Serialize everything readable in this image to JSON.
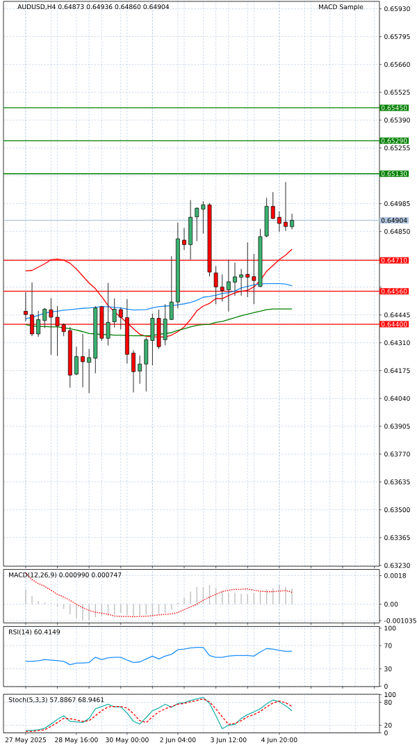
{
  "chart_data": [
    {
      "type": "candlestick",
      "title": "AUDUSD,H4 0.64873 0.64936 0.64860 0.64904",
      "annotations": [
        "MACD Sample"
      ],
      "categories": [
        null,
        null,
        null,
        null,
        null,
        null,
        null,
        null,
        null,
        null,
        null,
        null,
        null,
        null,
        null,
        null,
        null,
        null,
        null,
        null,
        null,
        null,
        null,
        null,
        null,
        null,
        null,
        null,
        null,
        null,
        null,
        null,
        null,
        null,
        null,
        null,
        null,
        null,
        null,
        null,
        null,
        null,
        null
      ],
      "ohlc": [
        [
          0.64463,
          0.64555,
          0.64415,
          0.64447
        ],
        [
          0.64446,
          0.64603,
          0.64342,
          0.64353
        ],
        [
          0.64353,
          0.64465,
          0.64339,
          0.64423
        ],
        [
          0.64418,
          0.64479,
          0.64381,
          0.64473
        ],
        [
          0.6447,
          0.64527,
          0.64252,
          0.64434
        ],
        [
          0.64434,
          0.64488,
          0.64246,
          0.64392
        ],
        [
          0.64398,
          0.64404,
          0.64342,
          0.64364
        ],
        [
          0.64369,
          0.64387,
          0.64092,
          0.64153
        ],
        [
          0.64158,
          0.64291,
          0.64153,
          0.64243
        ],
        [
          0.64243,
          0.64353,
          0.64094,
          0.64218
        ],
        [
          0.64215,
          0.6428,
          0.64066,
          0.64238
        ],
        [
          0.64235,
          0.64488,
          0.64162,
          0.64479
        ],
        [
          0.64485,
          0.64488,
          0.64319,
          0.64332
        ],
        [
          0.64332,
          0.646,
          0.64297,
          0.64409
        ],
        [
          0.64412,
          0.64525,
          0.64384,
          0.64473
        ],
        [
          0.64471,
          0.64482,
          0.64375,
          0.64434
        ],
        [
          0.64432,
          0.64522,
          0.64209,
          0.64254
        ],
        [
          0.6426,
          0.64274,
          0.64069,
          0.6417
        ],
        [
          0.64173,
          0.64248,
          0.64111,
          0.64207
        ],
        [
          0.64207,
          0.64336,
          0.64074,
          0.64325
        ],
        [
          0.64321,
          0.64452,
          0.64201,
          0.64429
        ],
        [
          0.64429,
          0.64471,
          0.6428,
          0.64291
        ],
        [
          0.64325,
          0.64497,
          0.64297,
          0.64425
        ],
        [
          0.64423,
          0.6473,
          0.6442,
          0.64508
        ],
        [
          0.64508,
          0.64893,
          0.64477,
          0.64814
        ],
        [
          0.64808,
          0.64867,
          0.6476,
          0.64786
        ],
        [
          0.64786,
          0.65002,
          0.64713,
          0.64919
        ],
        [
          0.64921,
          0.64966,
          0.64803,
          0.64963
        ],
        [
          0.64958,
          0.64996,
          0.64839,
          0.64979
        ],
        [
          0.64979,
          0.64988,
          0.64632,
          0.64653
        ],
        [
          0.64649,
          0.64682,
          0.64497,
          0.64581
        ],
        [
          0.6458,
          0.64642,
          0.6451,
          0.64564
        ],
        [
          0.64567,
          0.64713,
          0.64462,
          0.64606
        ],
        [
          0.64604,
          0.64699,
          0.64538,
          0.6463
        ],
        [
          0.64628,
          0.64668,
          0.64538,
          0.6464
        ],
        [
          0.64642,
          0.64797,
          0.64531,
          0.64628
        ],
        [
          0.64631,
          0.64741,
          0.64497,
          0.64612
        ],
        [
          0.64583,
          0.64862,
          0.6458,
          0.64825
        ],
        [
          0.64828,
          0.65013,
          0.64822,
          0.64972
        ],
        [
          0.64972,
          0.65041,
          0.6491,
          0.64913
        ],
        [
          0.64919,
          0.64947,
          0.64848,
          0.64889
        ],
        [
          0.64895,
          0.6509,
          0.64853,
          0.64874
        ],
        [
          0.64873,
          0.64936,
          0.6486,
          0.64904
        ]
      ],
      "colors": [
        "#ff0000",
        "#ff0000",
        "#3cb371",
        "#3cb371",
        "#ff0000",
        "#ff0000",
        "#ff0000",
        "#ff0000",
        "#3cb371",
        "#ff0000",
        "#3cb371",
        "#3cb371",
        "#ff0000",
        "#3cb371",
        "#3cb371",
        "#ff0000",
        "#ff0000",
        "#ff0000",
        "#3cb371",
        "#3cb371",
        "#3cb371",
        "#ff0000",
        "#3cb371",
        "#3cb371",
        "#3cb371",
        "#ff0000",
        "#3cb371",
        "#3cb371",
        "#3cb371",
        "#ff0000",
        "#ff0000",
        "#ff0000",
        "#3cb371",
        "#3cb371",
        "#3cb371",
        "#ff0000",
        "#ff0000",
        "#3cb371",
        "#3cb371",
        "#ff0000",
        "#ff0000",
        "#ff0000",
        "#3cb371"
      ],
      "series": [
        {
          "type": "line",
          "color": "#ff0000",
          "values": [
            0.64659,
            0.64661,
            0.64677,
            0.64693,
            0.64713,
            0.64716,
            0.64711,
            0.64696,
            0.64668,
            0.64634,
            0.646,
            0.64572,
            0.64533,
            0.64491,
            0.6446,
            0.64434,
            0.64407,
            0.64378,
            0.64351,
            0.64342,
            0.64339,
            0.64338,
            0.64338,
            0.64347,
            0.64364,
            0.64387,
            0.64423,
            0.64465,
            0.64488,
            0.64501,
            0.64525,
            0.64524,
            0.64539,
            0.64552,
            0.6456,
            0.64564,
            0.64581,
            0.64612,
            0.64657,
            0.64685,
            0.64713,
            0.64735,
            0.64764
          ]
        },
        {
          "type": "line",
          "color": "#1e90ff",
          "values": [
            0.64426,
            0.64434,
            0.64443,
            0.64454,
            0.6446,
            0.64463,
            0.64468,
            0.64471,
            0.64474,
            0.64477,
            0.64479,
            0.64482,
            0.64486,
            0.64485,
            0.64482,
            0.64479,
            0.64473,
            0.64469,
            0.6447,
            0.64471,
            0.6448,
            0.64485,
            0.64488,
            0.6449,
            0.64494,
            0.64499,
            0.64505,
            0.64516,
            0.64531,
            0.64535,
            0.64541,
            0.64549,
            0.64553,
            0.64561,
            0.64576,
            0.64584,
            0.64591,
            0.64595,
            0.64597,
            0.64597,
            0.64597,
            0.64595,
            0.64586
          ]
        },
        {
          "type": "line",
          "color": "#008000",
          "values": [
            0.64398,
            0.64392,
            0.64389,
            0.64389,
            0.64387,
            0.64387,
            0.64383,
            0.64378,
            0.64372,
            0.64364,
            0.64355,
            0.64353,
            0.6435,
            0.6435,
            0.64347,
            0.64347,
            0.64345,
            0.64344,
            0.64344,
            0.64344,
            0.64345,
            0.64351,
            0.64355,
            0.64359,
            0.6437,
            0.64378,
            0.64387,
            0.64395,
            0.64398,
            0.644,
            0.64409,
            0.64413,
            0.64423,
            0.64432,
            0.64441,
            0.64449,
            0.64456,
            0.64463,
            0.64471,
            0.64474,
            0.64474,
            0.64474,
            0.64474
          ]
        }
      ],
      "ref_lines": [
        {
          "axis": "y",
          "value": 0.6545,
          "label": "0.65450",
          "color": "#008000"
        },
        {
          "axis": "y",
          "value": 0.6529,
          "label": "0.65290",
          "color": "#008000"
        },
        {
          "axis": "y",
          "value": 0.6513,
          "label": "0.65130",
          "color": "#008000"
        },
        {
          "axis": "y",
          "value": 0.64904,
          "label": "0.64904",
          "color": "#b0c4de"
        },
        {
          "axis": "y",
          "value": 0.6471,
          "label": "0.64710",
          "color": "#ff0000"
        },
        {
          "axis": "y",
          "value": 0.6456,
          "label": "0.64560",
          "color": "#ff0000"
        },
        {
          "axis": "y",
          "value": 0.644,
          "label": "0.64400",
          "color": "#ff0000"
        }
      ],
      "ylim": [
        0.63226,
        0.65966
      ],
      "yticks": [
        {
          "value": 0.6323,
          "label": "0.63230"
        },
        0.63365,
        {
          "value": 0.635,
          "label": "0.63500"
        },
        0.63635,
        {
          "value": 0.6377,
          "label": "0.63770"
        },
        0.63905,
        {
          "value": 0.6404,
          "label": "0.64040"
        },
        0.64175,
        {
          "value": 0.6431,
          "label": "0.64310"
        },
        0.64445,
        {
          "value": 0.6458,
          "label": null
        },
        {
          "value": 0.64715,
          "label": null
        },
        {
          "value": 0.6485,
          "label": "0.64850"
        },
        0.64985,
        {
          "value": 0.6512,
          "label": null
        },
        0.65255,
        {
          "value": 0.6539,
          "label": "0.65390"
        },
        0.65525,
        {
          "value": 0.6566,
          "label": "0.65660"
        },
        0.65795,
        {
          "value": 0.6593,
          "label": "0.65930"
        }
      ],
      "grid": true,
      "tick_labels": "y"
    },
    {
      "type": "bar",
      "title": "MACD(12,26,9) 0.000990 0.000747",
      "categories": [
        null,
        null,
        null,
        null,
        null,
        null,
        null,
        null,
        null,
        null,
        null,
        null,
        null,
        null,
        null,
        null,
        null,
        null,
        null,
        null,
        null,
        null,
        null,
        null,
        null,
        null,
        null,
        null,
        null,
        null,
        null,
        null,
        null,
        null,
        null,
        null,
        null,
        null,
        null,
        null,
        null,
        null,
        null
      ],
      "series": [
        {
          "color": "#c0c0c0",
          "values": [
            0.00093,
            0.00051,
            0.0002,
            0.0001,
            0,
            -0.00017,
            -0.0003,
            -0.00064,
            -0.00086,
            -0.00101,
            -0.00101,
            -0.00081,
            -0.00077,
            -0.00072,
            -0.00064,
            -0.00056,
            -0.00067,
            -0.00076,
            -0.00072,
            -0.00067,
            -0.00072,
            -0.00061,
            -0.00056,
            -0.00034,
            0.0001,
            0.0004,
            0.00079,
            0.00108,
            0.00108,
            0.00121,
            0.00101,
            0.00082,
            0.00074,
            0.00074,
            0.00066,
            0.00062,
            0.00071,
            0.00079,
            0.00093,
            0.00101,
            0.00121,
            0.00108,
            0.00099
          ]
        },
        {
          "type": "line",
          "color": "#ff0000",
          "line_style": "dotted",
          "values": [
            0.00197,
            0.00155,
            0.0013,
            0.00113,
            0.00088,
            0.00062,
            0.00045,
            0.00024,
            0,
            -0.00022,
            -0.00039,
            -0.00051,
            -0.00056,
            -0.00064,
            -0.00074,
            -0.00077,
            -0.00077,
            -0.00079,
            -0.00077,
            -0.00076,
            -0.00072,
            -0.00067,
            -0.00064,
            -0.00061,
            -0.00052,
            -0.00034,
            -0.00017,
            0,
            0.00025,
            0.00045,
            0.00062,
            0.00079,
            0.00088,
            0.00093,
            0.00094,
            0.00096,
            0.00088,
            0.00082,
            0.00079,
            0.00079,
            0.00082,
            0.00086,
            0.000747
          ]
        }
      ],
      "ylim": [
        -0.00118,
        0.00219
      ],
      "yticks": [
        -0.001035,
        {
          "value": 0,
          "label": "0.00"
        },
        0.0018
      ],
      "grid": true,
      "tick_labels": "y"
    },
    {
      "type": "line",
      "title": "RSI(14) 60.4149",
      "categories": [
        null,
        null,
        null,
        null,
        null,
        null,
        null,
        null,
        null,
        null,
        null,
        null,
        null,
        null,
        null,
        null,
        null,
        null,
        null,
        null,
        null,
        null,
        null,
        null,
        null,
        null,
        null,
        null,
        null,
        null,
        null,
        null,
        null,
        null,
        null,
        null,
        null,
        null,
        null,
        null,
        null,
        null,
        null
      ],
      "series": [
        {
          "color": "#1e90ff",
          "values": [
            43,
            43,
            44,
            46,
            45,
            44,
            43,
            37,
            40,
            40,
            41,
            50,
            46,
            49,
            50,
            50,
            45,
            41,
            42,
            47,
            52,
            47,
            52,
            55,
            63,
            64,
            66,
            67,
            67,
            53,
            50,
            50,
            52,
            53,
            53,
            53,
            52,
            59,
            65,
            64,
            62,
            60,
            60.4149
          ]
        }
      ],
      "ylim": [
        -0.5,
        103
      ],
      "yticks": [
        0,
        30,
        70,
        100
      ],
      "grid": true,
      "tick_labels": "y"
    },
    {
      "type": "line",
      "title": "Stoch(5,3,3) 57.8867 68.9461",
      "categories": [
        "27 May 2025",
        null,
        null,
        null,
        null,
        null,
        null,
        null,
        "28 May 16:00",
        null,
        null,
        null,
        null,
        null,
        null,
        null,
        "30 May 00:00",
        null,
        null,
        null,
        null,
        null,
        null,
        null,
        "2 Jun 04:00",
        null,
        null,
        null,
        null,
        null,
        null,
        null,
        "3 Jun 12:00",
        null,
        null,
        null,
        null,
        null,
        null,
        null,
        "4 Jun 20:00",
        null,
        null
      ],
      "series": [
        {
          "color": "#20b2aa",
          "values": [
            6,
            6,
            8,
            12,
            23,
            35,
            45,
            30,
            29,
            27,
            38,
            63,
            69,
            75,
            68,
            68,
            52,
            30,
            23,
            40,
            58,
            65,
            75,
            67,
            77,
            79,
            85,
            89,
            93,
            77,
            45,
            11,
            20,
            22,
            38,
            48,
            55,
            63,
            76,
            86,
            81,
            71,
            57.8867
          ]
        },
        {
          "color": "#ff0000",
          "line_style": "dashed",
          "values": [
            4,
            4,
            6,
            8,
            17,
            27,
            38,
            37,
            34,
            30,
            32,
            45,
            58,
            68,
            69,
            69,
            65,
            50,
            32,
            27,
            42,
            55,
            63,
            69,
            75,
            77,
            81,
            85,
            89,
            81,
            63,
            42,
            22,
            25,
            32,
            42,
            48,
            56,
            68,
            78,
            83,
            79,
            68.9461
          ]
        }
      ],
      "ylim": [
        0,
        101
      ],
      "yticks": [
        0,
        20,
        80,
        100
      ],
      "grid": true
    }
  ]
}
